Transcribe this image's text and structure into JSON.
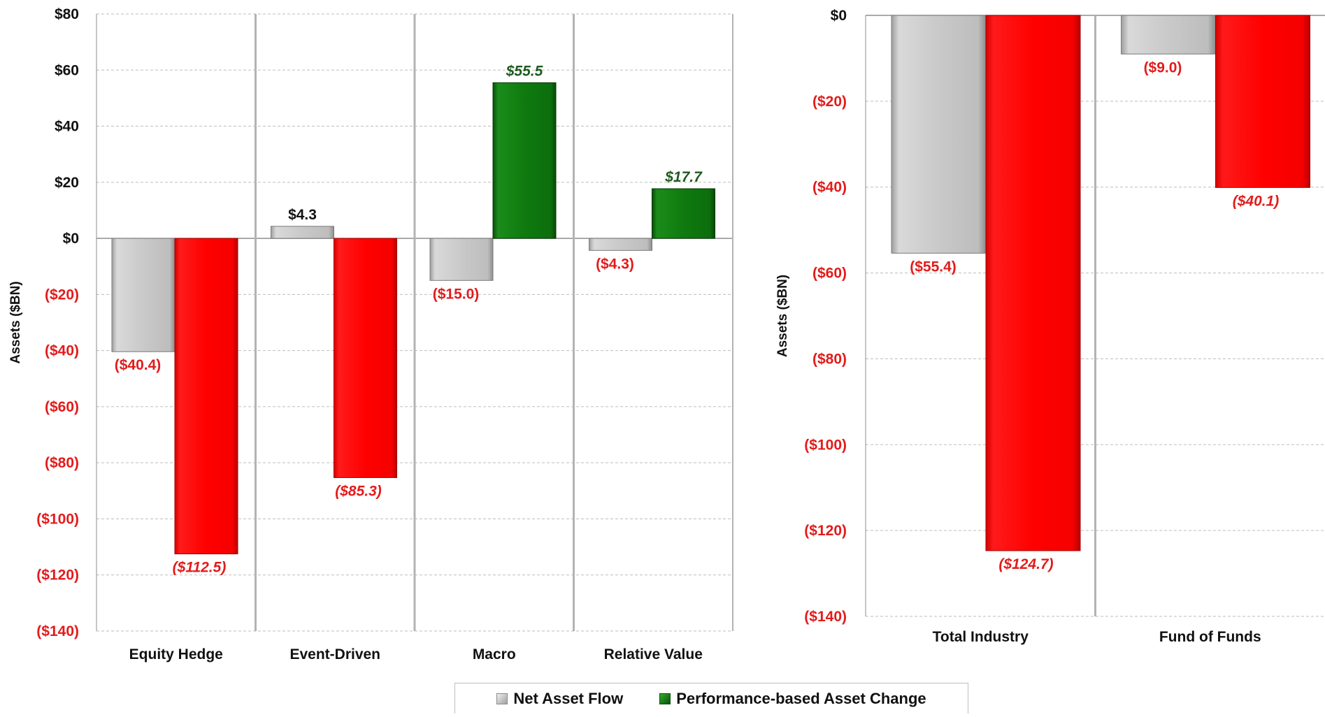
{
  "colors": {
    "flow": "#c8c8c8",
    "flow_dark": "#a8a8a8",
    "positive": "#0f7a0f",
    "negative": "#ff0000",
    "label_positive": "#1e5a1e",
    "label_negative": "#e31b1b",
    "label_neutral": "#111111",
    "grid": "#bdbdbd",
    "axis_line": "#8e8e8e",
    "divider": "#b3b3b3"
  },
  "legend": {
    "position": "bottom-center",
    "items": [
      {
        "label": "Net Asset Flow",
        "color": "#c8c8c8"
      },
      {
        "label": "Performance-based Asset Change",
        "color": "#0f7a0f"
      }
    ]
  },
  "chart_data": [
    {
      "type": "bar",
      "title": "",
      "xlabel": "",
      "ylabel": "Assets ($BN)",
      "ylim": [
        -140,
        80
      ],
      "grid": true,
      "y_ticks": [
        "$80",
        "$60",
        "$40",
        "$20",
        "$0",
        "($20)",
        "($40)",
        "($60)",
        "($80)",
        "($100)",
        "($120)",
        "($140)"
      ],
      "categories": [
        "Equity Hedge",
        "Event-Driven",
        "Macro",
        "Relative Value"
      ],
      "series": [
        {
          "name": "Net Asset Flow",
          "values": [
            -40.4,
            4.3,
            -15.0,
            -4.3
          ],
          "labels": [
            "($40.4)",
            "$4.3",
            "($15.0)",
            "($4.3)"
          ]
        },
        {
          "name": "Performance-based Asset Change",
          "values": [
            -112.5,
            -85.3,
            55.5,
            17.7
          ],
          "labels": [
            "($112.5)",
            "($85.3)",
            "$55.5",
            "$17.7"
          ]
        }
      ]
    },
    {
      "type": "bar",
      "title": "",
      "xlabel": "",
      "ylabel": "Assets ($BN)",
      "ylim": [
        -140,
        0
      ],
      "grid": true,
      "y_ticks": [
        "$0",
        "($20)",
        "($40)",
        "($60)",
        "($80)",
        "($100)",
        "($120)",
        "($140)"
      ],
      "categories": [
        "Total Industry",
        "Fund of Funds"
      ],
      "series": [
        {
          "name": "Net Asset Flow",
          "values": [
            -55.4,
            -9.0
          ],
          "labels": [
            "($55.4)",
            "($9.0)"
          ]
        },
        {
          "name": "Performance-based Asset Change",
          "values": [
            -124.7,
            -40.1
          ],
          "labels": [
            "($124.7)",
            "($40.1)"
          ]
        }
      ]
    }
  ]
}
